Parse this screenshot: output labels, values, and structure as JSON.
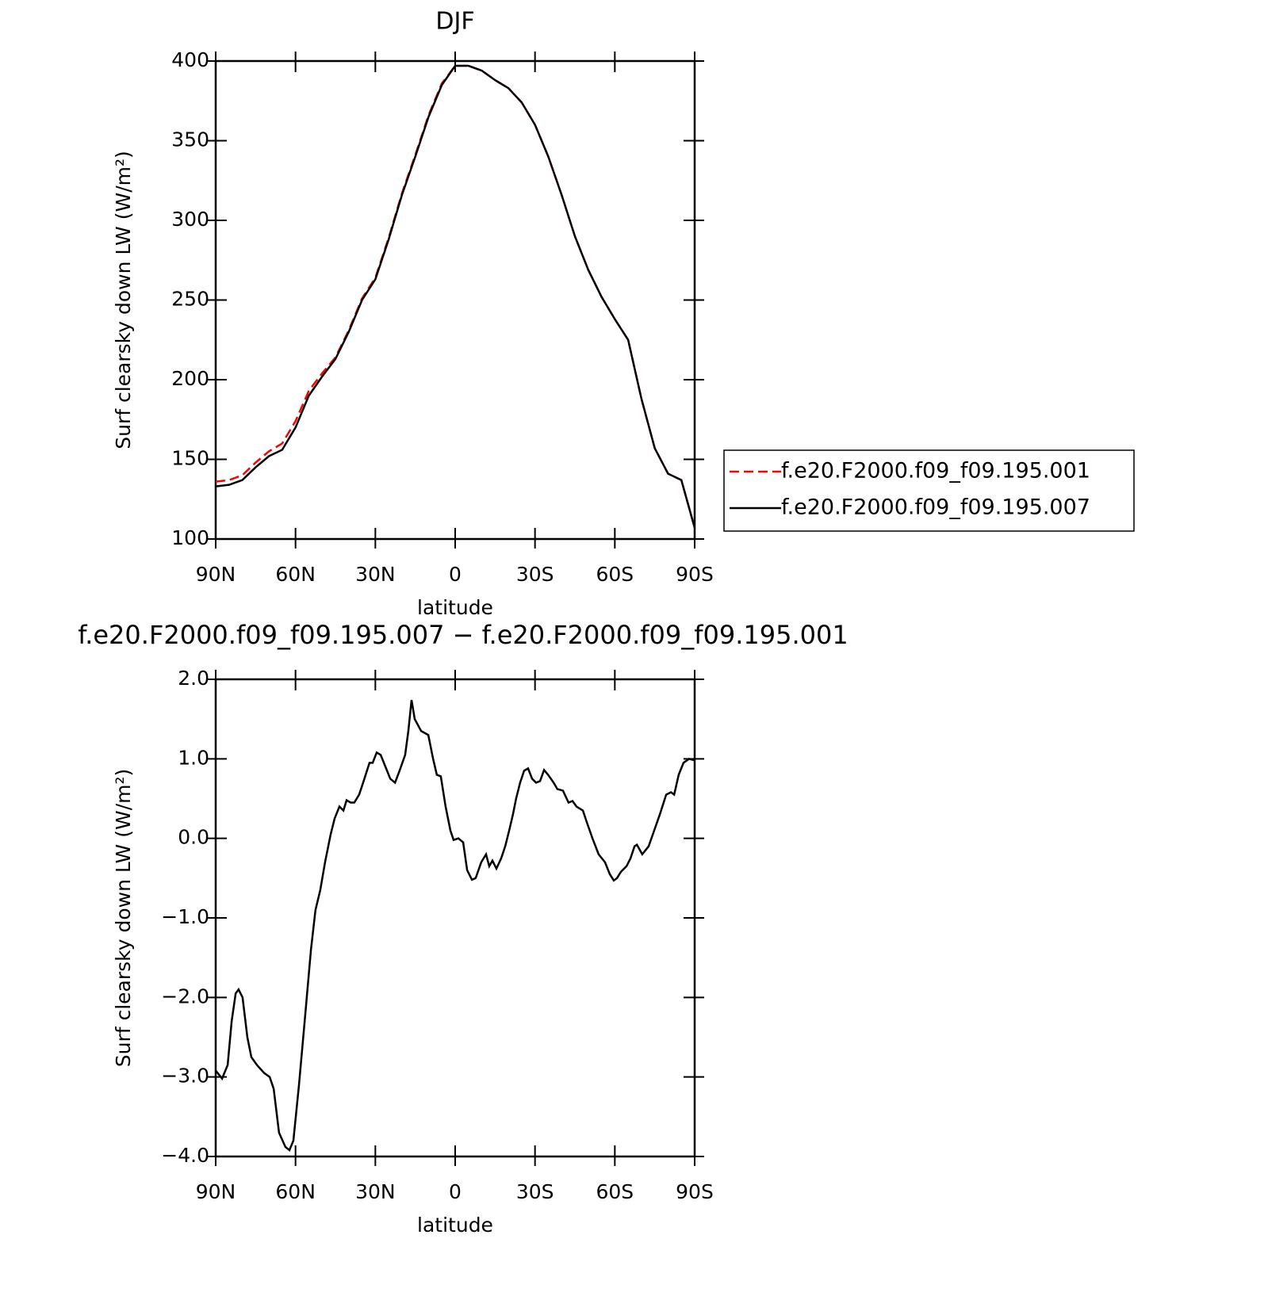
{
  "chart_data": [
    {
      "type": "line",
      "title": "DJF",
      "xlabel": "latitude",
      "ylabel": "Surf clearsky down LW (W/m²)",
      "x": [
        90,
        85,
        80,
        75,
        70,
        65,
        60,
        55,
        50,
        45,
        40,
        35,
        30,
        25,
        20,
        15,
        10,
        5,
        0,
        -5,
        -10,
        -15,
        -20,
        -25,
        -30,
        -35,
        -40,
        -45,
        -50,
        -55,
        -60,
        -65,
        -70,
        -75,
        -80,
        -85,
        -90
      ],
      "series": [
        {
          "name": "f.e20.F2000.f09_f09.195.001",
          "color": "#ff0000",
          "line_style": "dashed",
          "values": [
            136,
            137,
            140,
            148,
            155,
            160,
            174,
            193,
            204,
            214,
            231,
            251,
            264,
            289,
            317,
            341,
            366,
            386,
            397,
            397,
            394,
            388,
            383,
            374,
            360,
            340,
            316,
            290,
            269,
            252,
            238,
            225,
            188,
            157,
            141,
            137,
            107
          ]
        },
        {
          "name": "f.e20.F2000.f09_f09.195.007",
          "color": "#000000",
          "line_style": "solid",
          "values": [
            133,
            134,
            137,
            145,
            152,
            156,
            170,
            190,
            202,
            213,
            230,
            250,
            263,
            288,
            316,
            340,
            365,
            385,
            397,
            397,
            394,
            388,
            383,
            374,
            360,
            340,
            316,
            290,
            269,
            252,
            238,
            225,
            188,
            157,
            141,
            137,
            107
          ]
        }
      ],
      "xlim": [
        90,
        -90
      ],
      "xticks": [
        {
          "value": 90,
          "label": "90N"
        },
        {
          "value": 60,
          "label": "60N"
        },
        {
          "value": 30,
          "label": "30N"
        },
        0,
        {
          "value": -30,
          "label": "30S"
        },
        {
          "value": -60,
          "label": "60S"
        },
        {
          "value": -90,
          "label": "90S"
        }
      ],
      "ylim": [
        100,
        400
      ],
      "yticks": [
        100,
        150,
        200,
        250,
        300,
        350,
        400
      ],
      "legend": "right"
    },
    {
      "type": "line",
      "title": "f.e20.F2000.f09_f09.195.007 − f.e20.F2000.f09_f09.195.001",
      "xlabel": "latitude",
      "ylabel": "Surf clearsky down LW (W/m²)",
      "x": [
        90,
        87.6,
        85.5,
        84.0,
        82.5,
        81.4,
        79.9,
        78.1,
        76.6,
        74.5,
        71.8,
        69.7,
        68.2,
        66.2,
        63.8,
        62.3,
        60.8,
        58.7,
        56.3,
        54.2,
        52.5,
        50.7,
        48.9,
        46.8,
        45.3,
        43.5,
        42.0,
        40.8,
        39.3,
        37.9,
        36.1,
        34.6,
        32.2,
        31.0,
        29.5,
        28.0,
        26.2,
        24.4,
        22.6,
        20.9,
        18.8,
        17.6,
        16.4,
        15.2,
        12.8,
        10.1,
        8.3,
        6.9,
        5.4,
        3.6,
        1.8,
        0.6,
        -1.2,
        -3.0,
        -4.5,
        -6.3,
        -7.7,
        -9.8,
        -11.6,
        -12.8,
        -14.0,
        -15.5,
        -17.3,
        -18.8,
        -20.3,
        -21.7,
        -22.9,
        -24.4,
        -25.9,
        -27.4,
        -28.9,
        -30.4,
        -31.9,
        -33.4,
        -34.9,
        -37.0,
        -38.4,
        -40.5,
        -42.6,
        -44.1,
        -45.6,
        -48.0,
        -49.5,
        -51.6,
        -53.9,
        -56.3,
        -58.1,
        -59.6,
        -60.8,
        -62.3,
        -64.4,
        -65.9,
        -67.4,
        -68.3,
        -70.3,
        -72.7,
        -74.8,
        -76.9,
        -79.3,
        -81.1,
        -82.3,
        -84.0,
        -85.8,
        -87.9,
        -90
      ],
      "values": [
        -2.92,
        -3.02,
        -2.85,
        -2.3,
        -1.95,
        -1.9,
        -2.0,
        -2.5,
        -2.75,
        -2.85,
        -2.95,
        -3.0,
        -3.15,
        -3.7,
        -3.88,
        -3.92,
        -3.8,
        -3.1,
        -2.2,
        -1.4,
        -0.9,
        -0.65,
        -0.3,
        0.05,
        0.25,
        0.4,
        0.35,
        0.48,
        0.45,
        0.45,
        0.55,
        0.7,
        0.95,
        0.95,
        1.08,
        1.05,
        0.9,
        0.75,
        0.7,
        0.85,
        1.05,
        1.35,
        1.74,
        1.5,
        1.35,
        1.3,
        1.0,
        0.8,
        0.78,
        0.4,
        0.1,
        -0.02,
        0.0,
        -0.05,
        -0.4,
        -0.52,
        -0.5,
        -0.3,
        -0.2,
        -0.35,
        -0.28,
        -0.38,
        -0.25,
        -0.1,
        0.1,
        0.3,
        0.5,
        0.7,
        0.85,
        0.88,
        0.75,
        0.7,
        0.72,
        0.86,
        0.8,
        0.7,
        0.62,
        0.6,
        0.45,
        0.47,
        0.4,
        0.35,
        0.2,
        0.0,
        -0.2,
        -0.3,
        -0.45,
        -0.53,
        -0.5,
        -0.42,
        -0.35,
        -0.25,
        -0.1,
        -0.08,
        -0.2,
        -0.1,
        0.1,
        0.3,
        0.55,
        0.58,
        0.55,
        0.8,
        0.95,
        1.0,
        0.98
      ],
      "color": "#000000",
      "line_style": "solid",
      "xlim": [
        90,
        -90
      ],
      "xticks": [
        {
          "value": 90,
          "label": "90N"
        },
        {
          "value": 60,
          "label": "60N"
        },
        {
          "value": 30,
          "label": "30N"
        },
        0,
        {
          "value": -30,
          "label": "30S"
        },
        {
          "value": -60,
          "label": "60S"
        },
        {
          "value": -90,
          "label": "90S"
        }
      ],
      "ylim": [
        -4,
        2
      ],
      "yticks": [
        {
          "value": -4,
          "label": "−4.0"
        },
        {
          "value": -3,
          "label": "−3.0"
        },
        {
          "value": -2,
          "label": "−2.0"
        },
        {
          "value": -1,
          "label": "−1.0"
        },
        {
          "value": 0,
          "label": "0.0"
        },
        {
          "value": 1,
          "label": "1.0"
        },
        {
          "value": 2,
          "label": "2.0"
        }
      ]
    }
  ]
}
